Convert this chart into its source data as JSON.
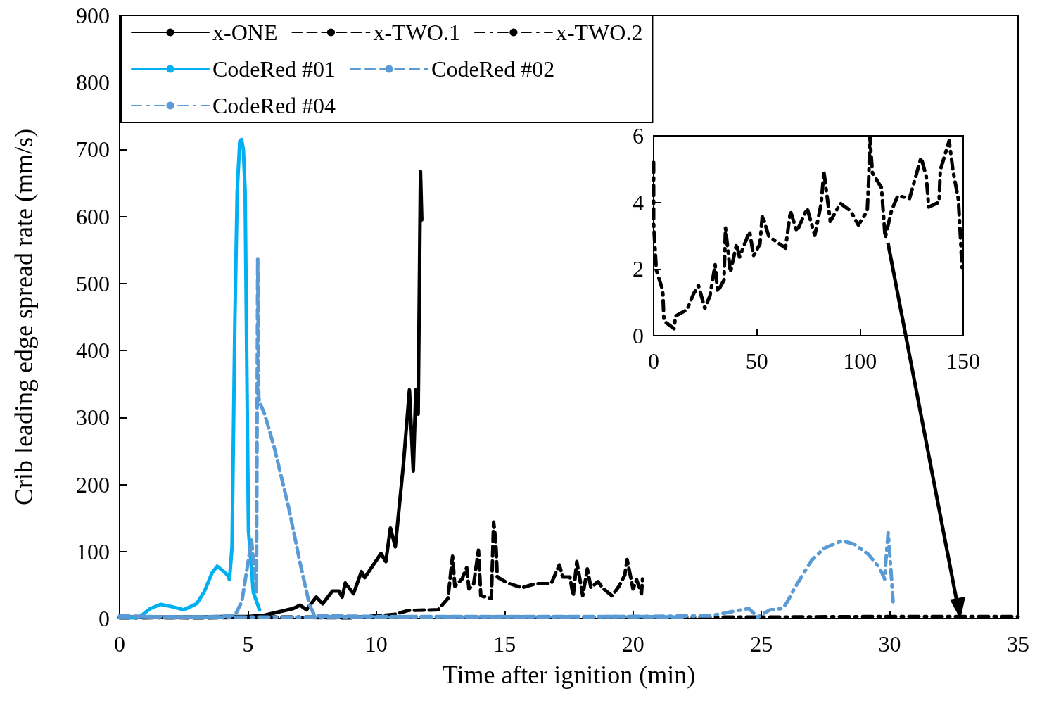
{
  "chart_data": [
    {
      "type": "line",
      "xlabel": "Time after ignition (min)",
      "ylabel": "Crib leading edge spread rate (mm/s)",
      "xlim": [
        0,
        35
      ],
      "xticks": [
        0,
        5,
        10,
        15,
        20,
        25,
        30,
        35
      ],
      "ylim": [
        0,
        900
      ],
      "yticks": [
        0,
        100,
        200,
        300,
        400,
        500,
        600,
        700,
        800,
        900
      ],
      "grid": false,
      "legend": "top left",
      "marker": "none",
      "series": [
        {
          "name": "x-ONE",
          "color": "#000000",
          "line_style": "solid",
          "x": [
            0,
            2,
            4,
            5,
            5.65,
            6.77,
            7.03,
            7.28,
            7.66,
            7.91,
            8.29,
            8.54,
            8.67,
            8.79,
            9.11,
            9.42,
            9.55,
            10.18,
            10.37,
            10.55,
            10.74,
            11.06,
            11.29,
            11.44,
            11.54,
            11.63,
            11.72,
            11.77
          ],
          "values": [
            2,
            2,
            3,
            3,
            5,
            15,
            20,
            13,
            32,
            22,
            41,
            41,
            32,
            53,
            37,
            70,
            61,
            97,
            85,
            135,
            107,
            232,
            341,
            220,
            341,
            305,
            667,
            595
          ]
        },
        {
          "name": "x-TWO.1",
          "color": "#000000",
          "line_style": "dashed",
          "x": [
            0,
            3,
            6,
            9,
            10.69,
            11.24,
            12.41,
            12.79,
            12.97,
            13.06,
            13.34,
            13.52,
            13.61,
            13.79,
            13.98,
            14.07,
            14.48,
            14.57,
            14.66,
            14.71,
            15.12,
            15.66,
            16.21,
            16.81,
            17.13,
            17.26,
            17.54,
            17.67,
            17.81,
            18.04,
            18.22,
            18.36,
            18.63,
            18.86,
            19.18,
            19.45,
            19.68,
            19.77,
            20.0,
            20.14,
            20.33,
            20.37
          ],
          "values": [
            2,
            1,
            2,
            1,
            6,
            12,
            13,
            30,
            93,
            48,
            59,
            76,
            44,
            51,
            102,
            34,
            30,
            144,
            111,
            62,
            53,
            46,
            52,
            52,
            80,
            62,
            62,
            34,
            85,
            34,
            74,
            46,
            55,
            44,
            34,
            48,
            65,
            88,
            44,
            58,
            37,
            59
          ]
        },
        {
          "name": "x-TWO.2",
          "color": "#000000",
          "line_style": "dashdot",
          "x": [
            0,
            5,
            10,
            15,
            20,
            25,
            30,
            35
          ],
          "values": [
            1,
            2,
            2,
            2,
            2,
            2,
            3,
            3
          ]
        },
        {
          "name": "CodeRed #01",
          "color": "#00b0f0",
          "line_style": "solid",
          "x": [
            0,
            0.5,
            0.8,
            1.2,
            1.6,
            2.0,
            2.5,
            3.0,
            3.3,
            3.6,
            3.8,
            4.0,
            4.2,
            4.28,
            4.38,
            4.49,
            4.58,
            4.68,
            4.75,
            4.82,
            4.89,
            4.95,
            5.02,
            5.21,
            5.45
          ],
          "values": [
            2,
            1,
            3,
            15,
            21,
            18,
            13,
            22,
            40,
            68,
            78,
            72,
            65,
            58,
            107,
            445,
            637,
            712,
            715,
            700,
            637,
            396,
            131,
            39,
            13
          ]
        },
        {
          "name": "CodeRed #02",
          "color": "#5b9bd5",
          "line_style": "dashed",
          "x": [
            0,
            2,
            4,
            4.5,
            4.76,
            5.14,
            5.26,
            5.33,
            5.38,
            5.42,
            5.45,
            5.65,
            6.02,
            6.59,
            7.03,
            7.4,
            7.6,
            10,
            15,
            20,
            22
          ],
          "values": [
            4,
            2,
            3,
            5,
            25,
            117,
            63,
            40,
            537,
            330,
            323,
            305,
            256,
            165,
            83,
            20,
            4,
            3,
            3,
            3,
            2
          ]
        },
        {
          "name": "CodeRed #04",
          "color": "#5b9bd5",
          "line_style": "dashdot",
          "x": [
            0,
            5,
            10,
            15,
            20,
            23,
            24.51,
            24.85,
            25.34,
            25.83,
            25.98,
            26.32,
            26.96,
            27.45,
            28.13,
            28.62,
            29.16,
            29.6,
            29.8,
            29.85,
            29.94,
            30.04,
            30.13
          ],
          "values": [
            3,
            2,
            2,
            2,
            3,
            4,
            15,
            2,
            13,
            15,
            23,
            47,
            87,
            105,
            116,
            111,
            96,
            76,
            59,
            87,
            128,
            76,
            25
          ]
        }
      ]
    },
    {
      "type": "line",
      "xlim": [
        0,
        150
      ],
      "xticks": [
        0,
        50,
        100,
        150
      ],
      "ylim": [
        0,
        6
      ],
      "yticks": [
        0,
        2,
        4,
        6
      ],
      "grid": false,
      "legend": false,
      "marker": "none",
      "series": [
        {
          "color": "#000000",
          "line_style": "dashdot",
          "x": [
            0,
            0,
            1.3,
            4.4,
            5,
            9.9,
            10.6,
            16.2,
            19.3,
            21.7,
            24.8,
            27.3,
            29.8,
            31,
            34.1,
            34.8,
            37.2,
            40.2,
            41.6,
            46.5,
            48.4,
            51.5,
            52.7,
            55.8,
            59.5,
            63.9,
            66.3,
            69.4,
            74.4,
            78.1,
            81.2,
            82.5,
            85.6,
            90.5,
            95.5,
            99.2,
            103.5,
            104.2,
            104.8,
            106,
            110.4,
            112.2,
            115.2,
            118.3,
            124,
            129.6,
            132.1,
            133.3,
            138.3,
            138.9,
            143.2,
            145.1,
            147.6,
            148.8,
            149.4
          ],
          "values": [
            5.2,
            3.36,
            1.97,
            1.36,
            0.44,
            0.21,
            0.59,
            0.78,
            1.25,
            1.51,
            0.82,
            1.2,
            2.13,
            1.32,
            1.67,
            3.24,
            1.9,
            2.75,
            2.36,
            3.13,
            2.4,
            2.75,
            3.62,
            2.98,
            2.82,
            2.63,
            3.74,
            3.13,
            3.82,
            3.01,
            3.97,
            4.93,
            3.43,
            3.97,
            3.74,
            3.32,
            3.74,
            4.67,
            5.97,
            4.89,
            4.44,
            2.94,
            3.74,
            4.2,
            4.12,
            5.35,
            4.78,
            3.86,
            4.01,
            4.97,
            5.85,
            4.93,
            4.12,
            2.82,
            2.05
          ]
        }
      ]
    }
  ]
}
